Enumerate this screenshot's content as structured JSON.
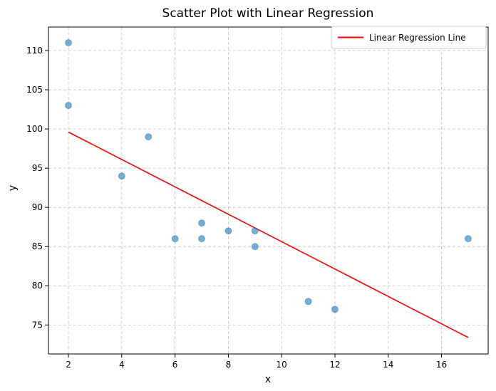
{
  "chart_data": {
    "type": "scatter",
    "title": "Scatter Plot with Linear Regression",
    "xlabel": "x",
    "ylabel": "y",
    "xlim": [
      1.25,
      17.75
    ],
    "ylim": [
      71.3,
      113.0
    ],
    "xticks": [
      2,
      4,
      6,
      8,
      10,
      12,
      14,
      16
    ],
    "yticks": [
      75,
      80,
      85,
      90,
      95,
      100,
      105,
      110
    ],
    "grid": true,
    "grid_style": "dashed",
    "legend_position": "top-right",
    "points": [
      {
        "x": 2,
        "y": 111
      },
      {
        "x": 2,
        "y": 103
      },
      {
        "x": 4,
        "y": 94
      },
      {
        "x": 5,
        "y": 99
      },
      {
        "x": 6,
        "y": 86
      },
      {
        "x": 7,
        "y": 88
      },
      {
        "x": 7,
        "y": 86
      },
      {
        "x": 8,
        "y": 87
      },
      {
        "x": 9,
        "y": 87
      },
      {
        "x": 9,
        "y": 85
      },
      {
        "x": 11,
        "y": 78
      },
      {
        "x": 12,
        "y": 77
      },
      {
        "x": 17,
        "y": 86
      }
    ],
    "point_color": "#1f77b4",
    "regression_line": {
      "name": "Linear Regression Line",
      "start": {
        "x": 2,
        "y": 99.6
      },
      "end": {
        "x": 17,
        "y": 73.4
      },
      "color": "#ff0000"
    }
  }
}
